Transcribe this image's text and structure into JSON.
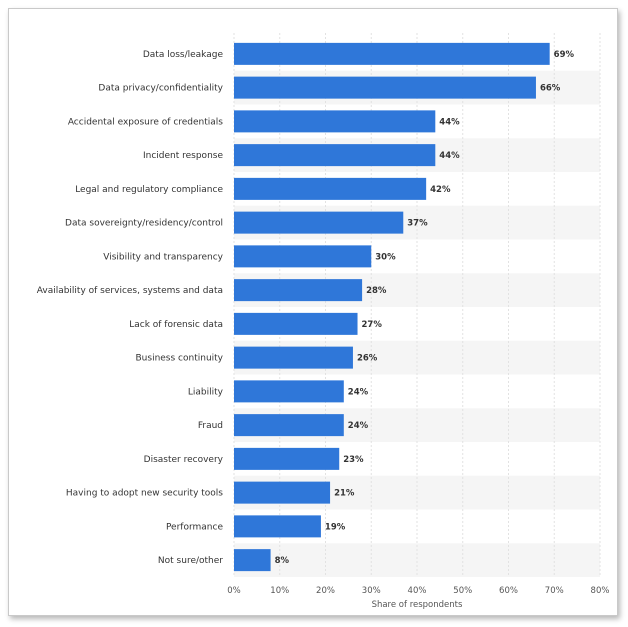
{
  "chart_data": {
    "type": "bar",
    "orientation": "horizontal",
    "categories": [
      "Data loss/leakage",
      "Data privacy/confidentiality",
      "Accidental exposure of credentials",
      "Incident response",
      "Legal and regulatory compliance",
      "Data sovereignty/residency/control",
      "Visibility and transparency",
      "Availability of services, systems and data",
      "Lack of forensic data",
      "Business continuity",
      "Liability",
      "Fraud",
      "Disaster recovery",
      "Having to adopt new security tools",
      "Performance",
      "Not sure/other"
    ],
    "values": [
      69,
      66,
      44,
      44,
      42,
      37,
      30,
      28,
      27,
      26,
      24,
      24,
      23,
      21,
      19,
      8
    ],
    "value_labels": [
      "69%",
      "66%",
      "44%",
      "44%",
      "42%",
      "37%",
      "30%",
      "28%",
      "27%",
      "26%",
      "24%",
      "24%",
      "23%",
      "21%",
      "19%",
      "8%"
    ],
    "xlabel": "Share of respondents",
    "xlim": [
      0,
      80
    ],
    "xticks": [
      "0%",
      "10%",
      "20%",
      "30%",
      "40%",
      "50%",
      "60%",
      "70%",
      "80%"
    ],
    "grid": true,
    "bar_color": "#2f77d9"
  }
}
